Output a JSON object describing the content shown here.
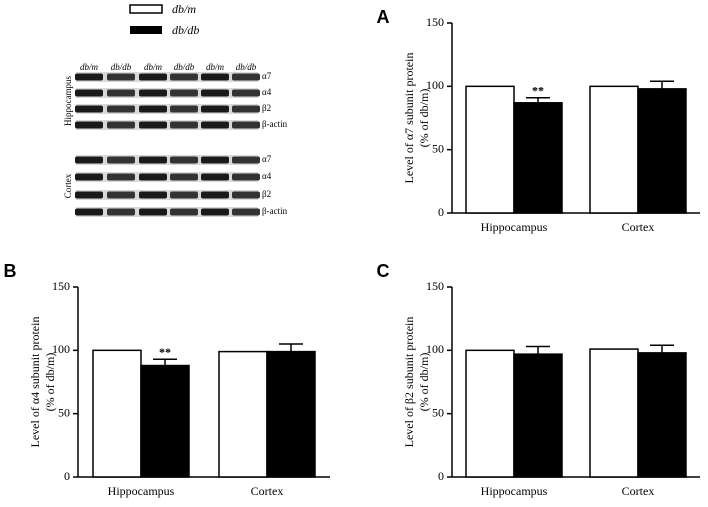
{
  "blot": {
    "lanes": [
      "db/m",
      "db/db",
      "db/m",
      "db/db",
      "db/m",
      "db/db"
    ],
    "regions": [
      {
        "name": "Hippocampus",
        "bands": [
          "α7",
          "α4",
          "β2",
          "β-actin"
        ]
      },
      {
        "name": "Cortex",
        "bands": [
          "α7",
          "α4",
          "β2",
          "β-actin"
        ]
      }
    ]
  },
  "chart_data": [
    {
      "type": "bar",
      "panel": "A",
      "ylabel": [
        "Level of α7 subunit protein",
        "(% of db/m)"
      ],
      "categories": [
        "Hippocampus",
        "Cortex"
      ],
      "ylim": [
        0,
        150
      ],
      "yticks": [
        0,
        50,
        100,
        150
      ],
      "series": [
        {
          "name": "db/m",
          "color": "#ffffff",
          "values": [
            100,
            100
          ]
        },
        {
          "name": "db/db",
          "color": "#000000",
          "values": [
            87,
            98
          ],
          "errors": [
            4,
            6
          ],
          "significance": [
            "**",
            null
          ]
        }
      ]
    },
    {
      "type": "bar",
      "panel": "B",
      "ylabel": [
        "Level of α4 subunit protein",
        "(% of db/m)"
      ],
      "categories": [
        "Hippocampus",
        "Cortex"
      ],
      "ylim": [
        0,
        150
      ],
      "yticks": [
        0,
        50,
        100,
        150
      ],
      "series": [
        {
          "name": "db/m",
          "color": "#ffffff",
          "values": [
            100,
            99
          ]
        },
        {
          "name": "db/db",
          "color": "#000000",
          "values": [
            88,
            99
          ],
          "errors": [
            5,
            6
          ],
          "significance": [
            "**",
            null
          ]
        }
      ]
    },
    {
      "type": "bar",
      "panel": "C",
      "ylabel": [
        "Level of β2 subunit protein",
        "(% of db/m)"
      ],
      "categories": [
        "Hippocampus",
        "Cortex"
      ],
      "ylim": [
        0,
        150
      ],
      "yticks": [
        0,
        50,
        100,
        150
      ],
      "series": [
        {
          "name": "db/m",
          "color": "#ffffff",
          "values": [
            100,
            101
          ]
        },
        {
          "name": "db/db",
          "color": "#000000",
          "values": [
            97,
            98
          ],
          "errors": [
            6,
            6
          ]
        }
      ]
    }
  ]
}
